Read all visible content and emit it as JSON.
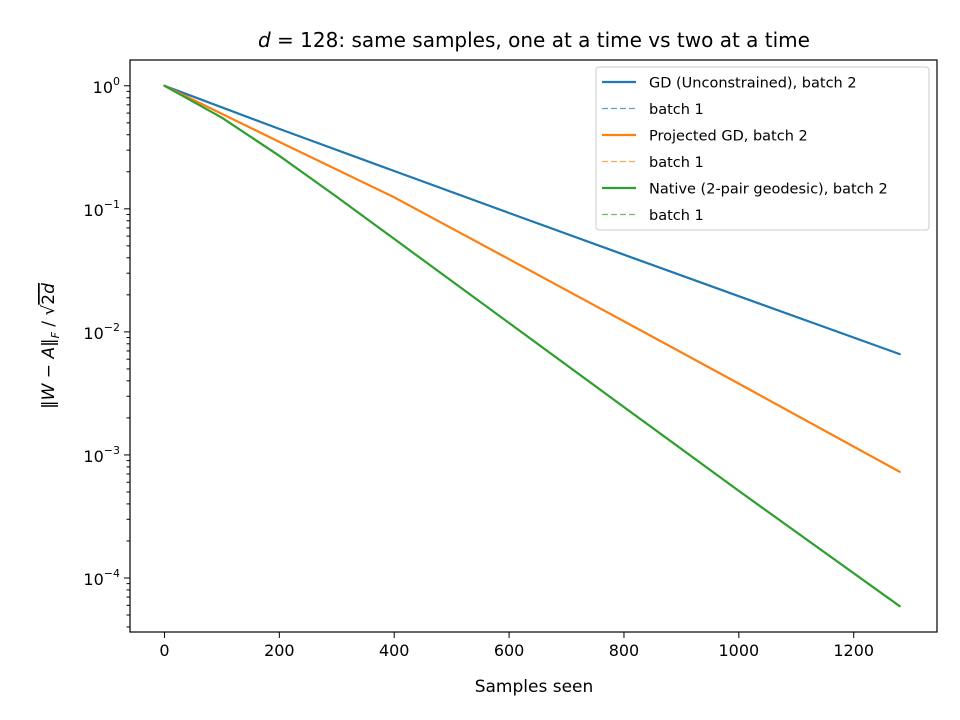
{
  "chart_data": {
    "type": "line",
    "title_prefix": "d",
    "title_equals": " = 128",
    "title_rest": ": same samples, one at a time vs two at a time",
    "xlabel": "Samples seen",
    "ylabel": {
      "norm_open": "‖",
      "W": "W",
      "minus": " − ",
      "A": "A",
      "norm_close": "‖",
      "F": "F",
      "slash": " / ",
      "sqrt": "√",
      "inner": "2",
      "d": "d"
    },
    "y_scale": "log",
    "xlim": [
      -60,
      1345
    ],
    "ylim": [
      3.64e-05,
      1.62
    ],
    "x_ticks": [
      0,
      200,
      400,
      600,
      800,
      1000,
      1200
    ],
    "x_tick_labels": [
      "0",
      "200",
      "400",
      "600",
      "800",
      "1000",
      "1200"
    ],
    "y_ticks": [
      {
        "value": 1,
        "base": "10",
        "exp": "0"
      },
      {
        "value": 0.1,
        "base": "10",
        "exp": "−1"
      },
      {
        "value": 0.01,
        "base": "10",
        "exp": "−2"
      },
      {
        "value": 0.001,
        "base": "10",
        "exp": "−3"
      },
      {
        "value": 0.0001,
        "base": "10",
        "exp": "−4"
      }
    ],
    "grid": false,
    "legend_position": "top-right",
    "series": [
      {
        "name": "GD (Unconstrained), batch 2",
        "color": "#1f77b4",
        "style": "solid",
        "x": [
          0,
          200,
          400,
          600,
          800,
          1000,
          1280
        ],
        "y": [
          1,
          0.446,
          0.203,
          0.0925,
          0.0424,
          0.0195,
          0.0066
        ]
      },
      {
        "name": "batch 1",
        "color": "#1f77b4",
        "style": "dashed",
        "x": [
          0,
          200,
          400,
          600,
          800,
          1000,
          1280
        ],
        "y": [
          1,
          0.446,
          0.203,
          0.0925,
          0.0424,
          0.0195,
          0.0066
        ]
      },
      {
        "name": "Projected GD, batch 2",
        "color": "#ff7f0e",
        "style": "solid",
        "x": [
          0,
          200,
          400,
          600,
          800,
          1000,
          1280
        ],
        "y": [
          1,
          0.35,
          0.124,
          0.039,
          0.0122,
          0.0038,
          0.00073
        ]
      },
      {
        "name": "batch 1",
        "color": "#ff7f0e",
        "style": "dashed",
        "x": [
          0,
          200,
          400,
          600,
          800,
          1000,
          1280
        ],
        "y": [
          1,
          0.35,
          0.124,
          0.039,
          0.0122,
          0.0038,
          0.00073
        ]
      },
      {
        "name": "Native (2-pair geodesic), batch 2",
        "color": "#2ca02c",
        "style": "solid",
        "x": [
          0,
          100,
          200,
          300,
          400,
          500,
          600,
          800,
          1000,
          1280
        ],
        "y": [
          1,
          0.55,
          0.27,
          0.125,
          0.057,
          0.0259,
          0.0118,
          0.00245,
          0.00051,
          5.9e-05
        ]
      },
      {
        "name": "batch 1",
        "color": "#2ca02c",
        "style": "dashed",
        "x": [
          0,
          100,
          200,
          300,
          400,
          500,
          600,
          800,
          1000,
          1280
        ],
        "y": [
          1,
          0.55,
          0.27,
          0.125,
          0.057,
          0.0259,
          0.0118,
          0.00245,
          0.00051,
          5.9e-05
        ]
      }
    ]
  }
}
